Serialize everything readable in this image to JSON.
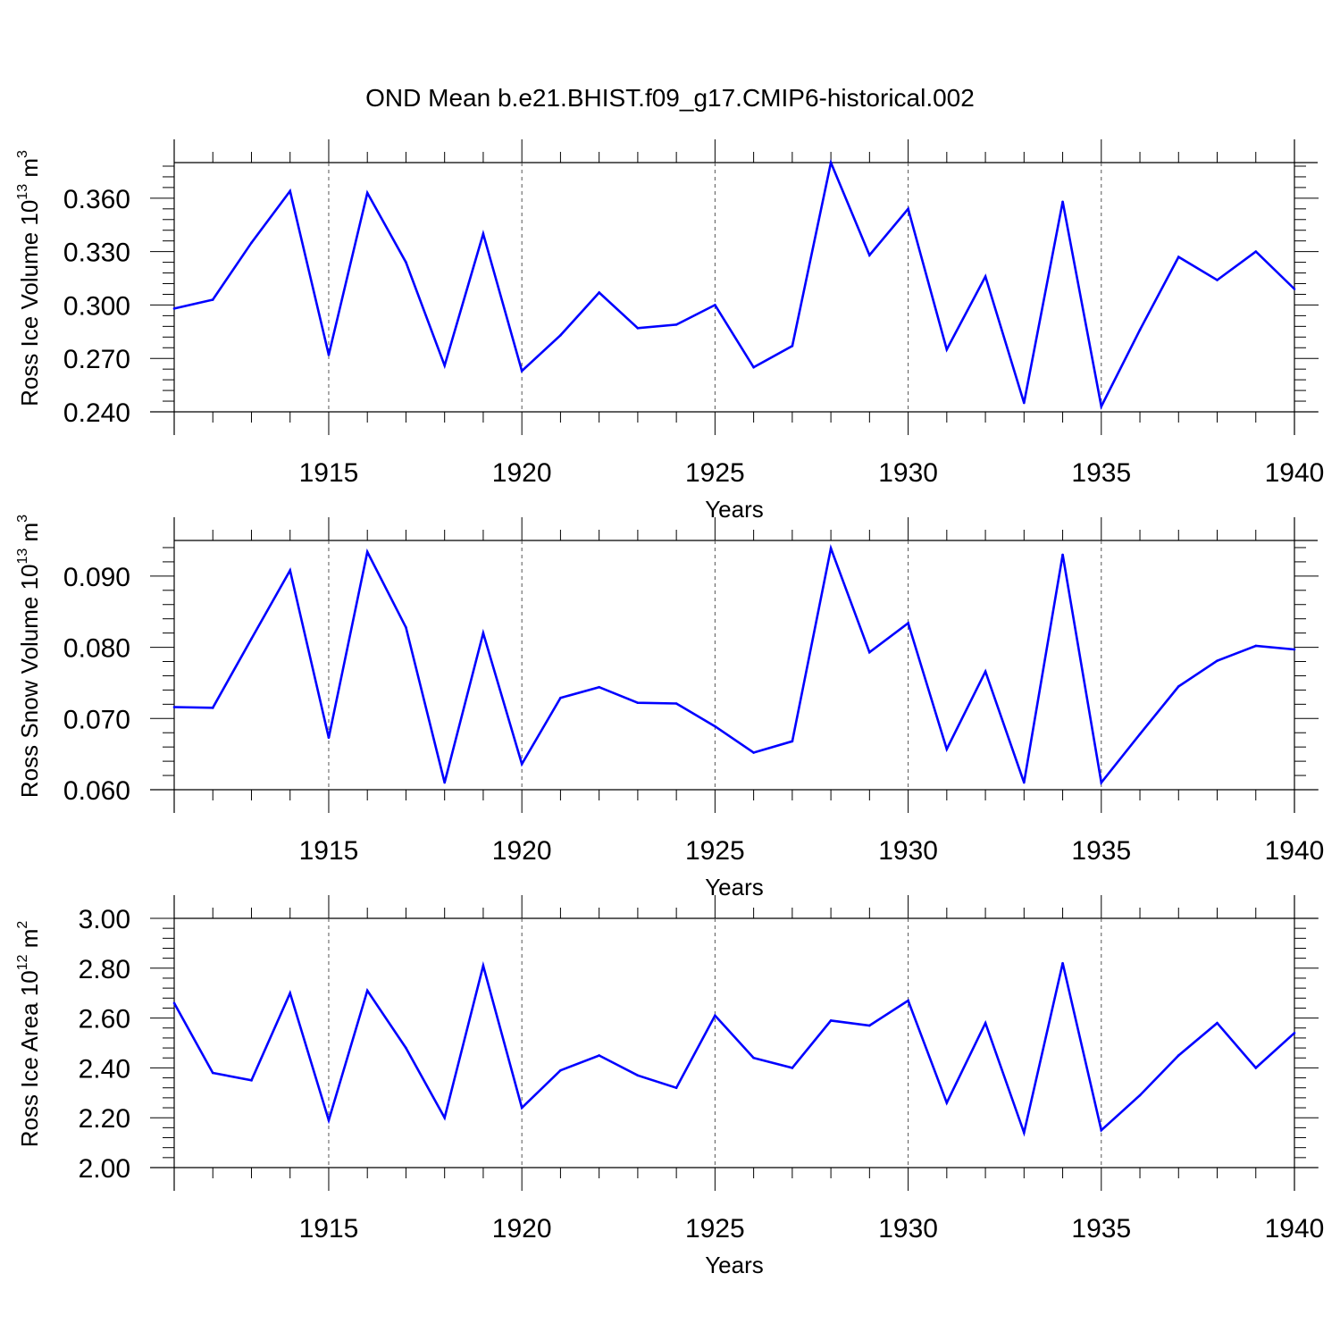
{
  "figure_title": "OND Mean b.e21.BHIST.f09_g17.CMIP6-historical.002",
  "line_color": "#0000ff",
  "chart_data": [
    {
      "type": "line",
      "title": "OND Mean b.e21.BHIST.f09_g17.CMIP6-historical.002",
      "xlabel": "Years",
      "ylabel": "Ross Ice Volume 10",
      "ylabel_exp": "13",
      "ylabel_unit": " m",
      "ylabel_unit_exp": "3",
      "xlim": [
        1911,
        1940
      ],
      "ylim": [
        0.24,
        0.38
      ],
      "x_ticks": [
        1915,
        1920,
        1925,
        1930,
        1935,
        1940
      ],
      "x_tick_labels": [
        "1915",
        "1920",
        "1925",
        "1930",
        "1935",
        "1940"
      ],
      "y_ticks": [
        0.24,
        0.27,
        0.3,
        0.33,
        0.36
      ],
      "y_tick_labels": [
        "0.240",
        "0.270",
        "0.300",
        "0.330",
        "0.360"
      ],
      "x": [
        1911,
        1912,
        1913,
        1914,
        1915,
        1916,
        1917,
        1918,
        1919,
        1920,
        1921,
        1922,
        1923,
        1924,
        1925,
        1926,
        1927,
        1928,
        1929,
        1930,
        1931,
        1932,
        1933,
        1934,
        1935,
        1936,
        1937,
        1938,
        1939,
        1940
      ],
      "series": [
        {
          "name": "Ross Ice Volume",
          "values": [
            0.298,
            0.303,
            0.335,
            0.364,
            0.272,
            0.363,
            0.324,
            0.266,
            0.34,
            0.263,
            0.283,
            0.307,
            0.287,
            0.289,
            0.3,
            0.265,
            0.277,
            0.38,
            0.328,
            0.354,
            0.275,
            0.316,
            0.245,
            0.358,
            0.243,
            0.286,
            0.327,
            0.314,
            0.33,
            0.309
          ]
        }
      ]
    },
    {
      "type": "line",
      "xlabel": "Years",
      "ylabel": "Ross Snow Volume 10",
      "ylabel_exp": "13",
      "ylabel_unit": " m",
      "ylabel_unit_exp": "3",
      "xlim": [
        1911,
        1940
      ],
      "ylim": [
        0.06,
        0.095
      ],
      "x_ticks": [
        1915,
        1920,
        1925,
        1930,
        1935,
        1940
      ],
      "x_tick_labels": [
        "1915",
        "1920",
        "1925",
        "1930",
        "1935",
        "1940"
      ],
      "y_ticks": [
        0.06,
        0.07,
        0.08,
        0.09
      ],
      "y_tick_labels": [
        "0.060",
        "0.070",
        "0.080",
        "0.090"
      ],
      "x": [
        1911,
        1912,
        1913,
        1914,
        1915,
        1916,
        1917,
        1918,
        1919,
        1920,
        1921,
        1922,
        1923,
        1924,
        1925,
        1926,
        1927,
        1928,
        1929,
        1930,
        1931,
        1932,
        1933,
        1934,
        1935,
        1936,
        1937,
        1938,
        1939,
        1940
      ],
      "series": [
        {
          "name": "Ross Snow Volume",
          "values": [
            0.0716,
            0.0715,
            0.0812,
            0.0908,
            0.0673,
            0.0934,
            0.0828,
            0.061,
            0.082,
            0.0636,
            0.0729,
            0.0744,
            0.0722,
            0.0721,
            0.0689,
            0.0652,
            0.0668,
            0.0939,
            0.0793,
            0.0834,
            0.0657,
            0.0766,
            0.061,
            0.093,
            0.061,
            0.0678,
            0.0745,
            0.0781,
            0.0802,
            0.0797
          ]
        }
      ]
    },
    {
      "type": "line",
      "xlabel": "Years",
      "ylabel": "Ross Ice Area 10",
      "ylabel_exp": "12",
      "ylabel_unit": " m",
      "ylabel_unit_exp": "2",
      "xlim": [
        1911,
        1940
      ],
      "ylim": [
        2.0,
        3.0
      ],
      "x_ticks": [
        1915,
        1920,
        1925,
        1930,
        1935,
        1940
      ],
      "x_tick_labels": [
        "1915",
        "1920",
        "1925",
        "1930",
        "1935",
        "1940"
      ],
      "y_ticks": [
        2.0,
        2.2,
        2.4,
        2.6,
        2.8,
        3.0
      ],
      "y_tick_labels": [
        "2.00",
        "2.20",
        "2.40",
        "2.60",
        "2.80",
        "3.00"
      ],
      "x": [
        1911,
        1912,
        1913,
        1914,
        1915,
        1916,
        1917,
        1918,
        1919,
        1920,
        1921,
        1922,
        1923,
        1924,
        1925,
        1926,
        1927,
        1928,
        1929,
        1930,
        1931,
        1932,
        1933,
        1934,
        1935,
        1936,
        1937,
        1938,
        1939,
        1940
      ],
      "series": [
        {
          "name": "Ross Ice Area",
          "values": [
            2.66,
            2.38,
            2.35,
            2.7,
            2.19,
            2.71,
            2.48,
            2.2,
            2.81,
            2.24,
            2.39,
            2.45,
            2.37,
            2.32,
            2.61,
            2.44,
            2.4,
            2.59,
            2.57,
            2.67,
            2.26,
            2.58,
            2.14,
            2.82,
            2.15,
            2.29,
            2.45,
            2.58,
            2.4,
            2.54
          ]
        }
      ]
    }
  ]
}
